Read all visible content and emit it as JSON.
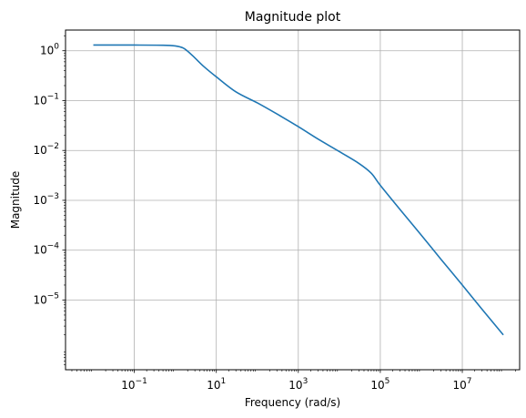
{
  "chart_data": {
    "type": "line",
    "title": "Magnitude plot",
    "xlabel": "Frequency (rad/s)",
    "ylabel": "Magnitude",
    "xscale": "log",
    "yscale": "log",
    "grid": true,
    "xlim": [
      0.0021,
      250000000
    ],
    "ylim": [
      4e-07,
      2.6
    ],
    "xticks": [
      {
        "base": "10",
        "exp": "−1",
        "value": 0.1
      },
      {
        "base": "10",
        "exp": "1",
        "value": 10
      },
      {
        "base": "10",
        "exp": "3",
        "value": 1000
      },
      {
        "base": "10",
        "exp": "5",
        "value": 100000
      },
      {
        "base": "10",
        "exp": "7",
        "value": 10000000
      }
    ],
    "yticks": [
      {
        "base": "10",
        "exp": "0",
        "value": 1
      },
      {
        "base": "10",
        "exp": "−1",
        "value": 0.1
      },
      {
        "base": "10",
        "exp": "−2",
        "value": 0.01
      },
      {
        "base": "10",
        "exp": "−3",
        "value": 0.001
      },
      {
        "base": "10",
        "exp": "−4",
        "value": 0.0001
      },
      {
        "base": "10",
        "exp": "−5",
        "value": 1e-05
      }
    ],
    "series": [
      {
        "color": "#1f77b4",
        "x": [
          0.01,
          0.1,
          0.5,
          1,
          1.5,
          2,
          3,
          5,
          10,
          30,
          100,
          300,
          1000,
          3000,
          10000,
          30000,
          60000,
          100000,
          300000,
          1000000,
          3000000,
          10000000,
          30000000,
          100000000
        ],
        "y": [
          1.3,
          1.3,
          1.29,
          1.25,
          1.15,
          0.98,
          0.72,
          0.48,
          0.3,
          0.15,
          0.09,
          0.054,
          0.03,
          0.017,
          0.0095,
          0.0055,
          0.0035,
          0.002,
          0.00066,
          0.0002,
          6.6e-05,
          2e-05,
          6.6e-06,
          2e-06
        ]
      }
    ]
  }
}
